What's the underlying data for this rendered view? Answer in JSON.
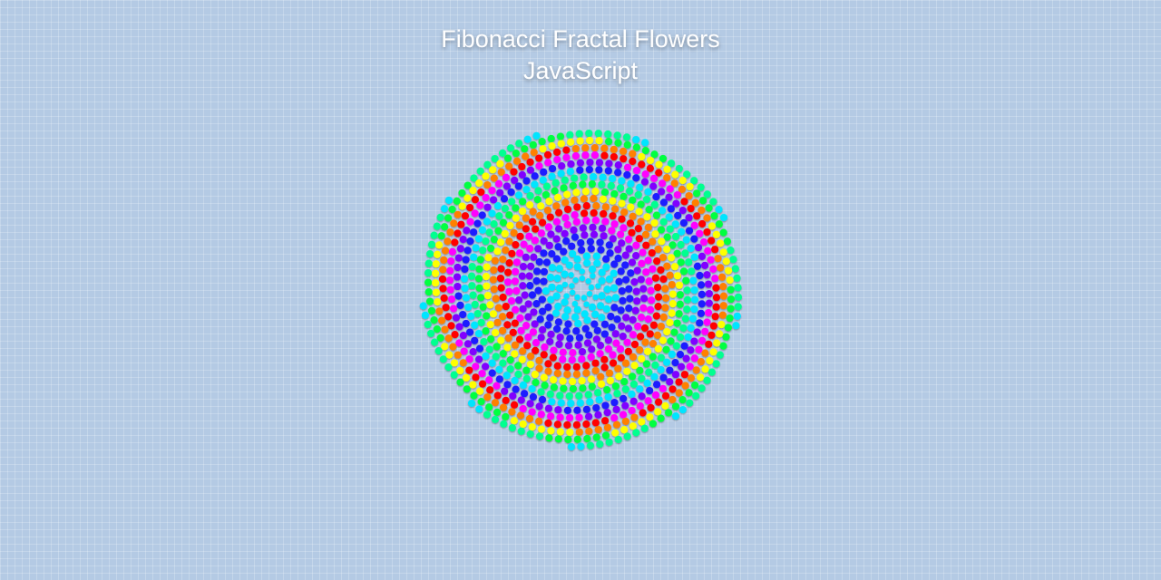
{
  "header": {
    "title_line1": "Fibonacci Fractal Flowers",
    "title_line2": "JavaScript"
  },
  "colors": {
    "background": "#b4cae4",
    "title_text": "#ffffff"
  },
  "flower": {
    "arms": 9,
    "palette": [
      "#00e5ff",
      "#1a1aff",
      "#8000ff",
      "#ff00ff",
      "#ff0000",
      "#ff8000",
      "#ffff00",
      "#00ff40",
      "#00ff90"
    ]
  }
}
